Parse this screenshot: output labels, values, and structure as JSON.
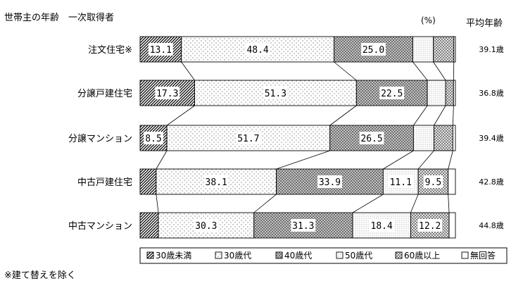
{
  "header": {
    "title": "世帯主の年齢　一次取得者",
    "unit": "(%)",
    "avg_header": "平均年齢"
  },
  "footnote": "※建て替えを除く",
  "chart_data": {
    "type": "bar",
    "stacked": true,
    "orientation": "horizontal",
    "percent": true,
    "categories": [
      "注文住宅※",
      "分譲戸建住宅",
      "分譲マンション",
      "中古戸建住宅",
      "中古マンション"
    ],
    "series": [
      {
        "name": "30歳未満",
        "values": [
          13.1,
          17.3,
          8.5,
          5.1,
          5.8
        ],
        "labels": [
          "13.1",
          "17.3",
          "8.5",
          "",
          ""
        ]
      },
      {
        "name": "30歳代",
        "values": [
          48.4,
          51.3,
          51.7,
          38.1,
          30.3
        ],
        "labels": [
          "48.4",
          "51.3",
          "51.7",
          "38.1",
          "30.3"
        ]
      },
      {
        "name": "40歳代",
        "values": [
          25.0,
          22.5,
          26.5,
          33.9,
          31.3
        ],
        "labels": [
          "25.0",
          "22.5",
          "26.5",
          "33.9",
          "31.3"
        ]
      },
      {
        "name": "50歳代",
        "values": [
          6.5,
          5.8,
          6.5,
          11.1,
          18.4
        ],
        "labels": [
          "",
          "",
          "",
          "11.1",
          "18.4"
        ]
      },
      {
        "name": "60歳以上",
        "values": [
          6.5,
          2.5,
          6.0,
          9.5,
          12.2
        ],
        "labels": [
          "",
          "",
          "",
          "9.5",
          "12.2"
        ]
      },
      {
        "name": "無回答",
        "values": [
          0.5,
          0.6,
          0.8,
          2.3,
          2.0
        ],
        "labels": [
          "",
          "",
          "",
          "",
          ""
        ]
      }
    ],
    "average_age": [
      "39.1歳",
      "36.8歳",
      "39.4歳",
      "42.8歳",
      "44.8歳"
    ],
    "xlim": [
      0,
      100
    ],
    "legend_position": "bottom",
    "grid": false
  }
}
